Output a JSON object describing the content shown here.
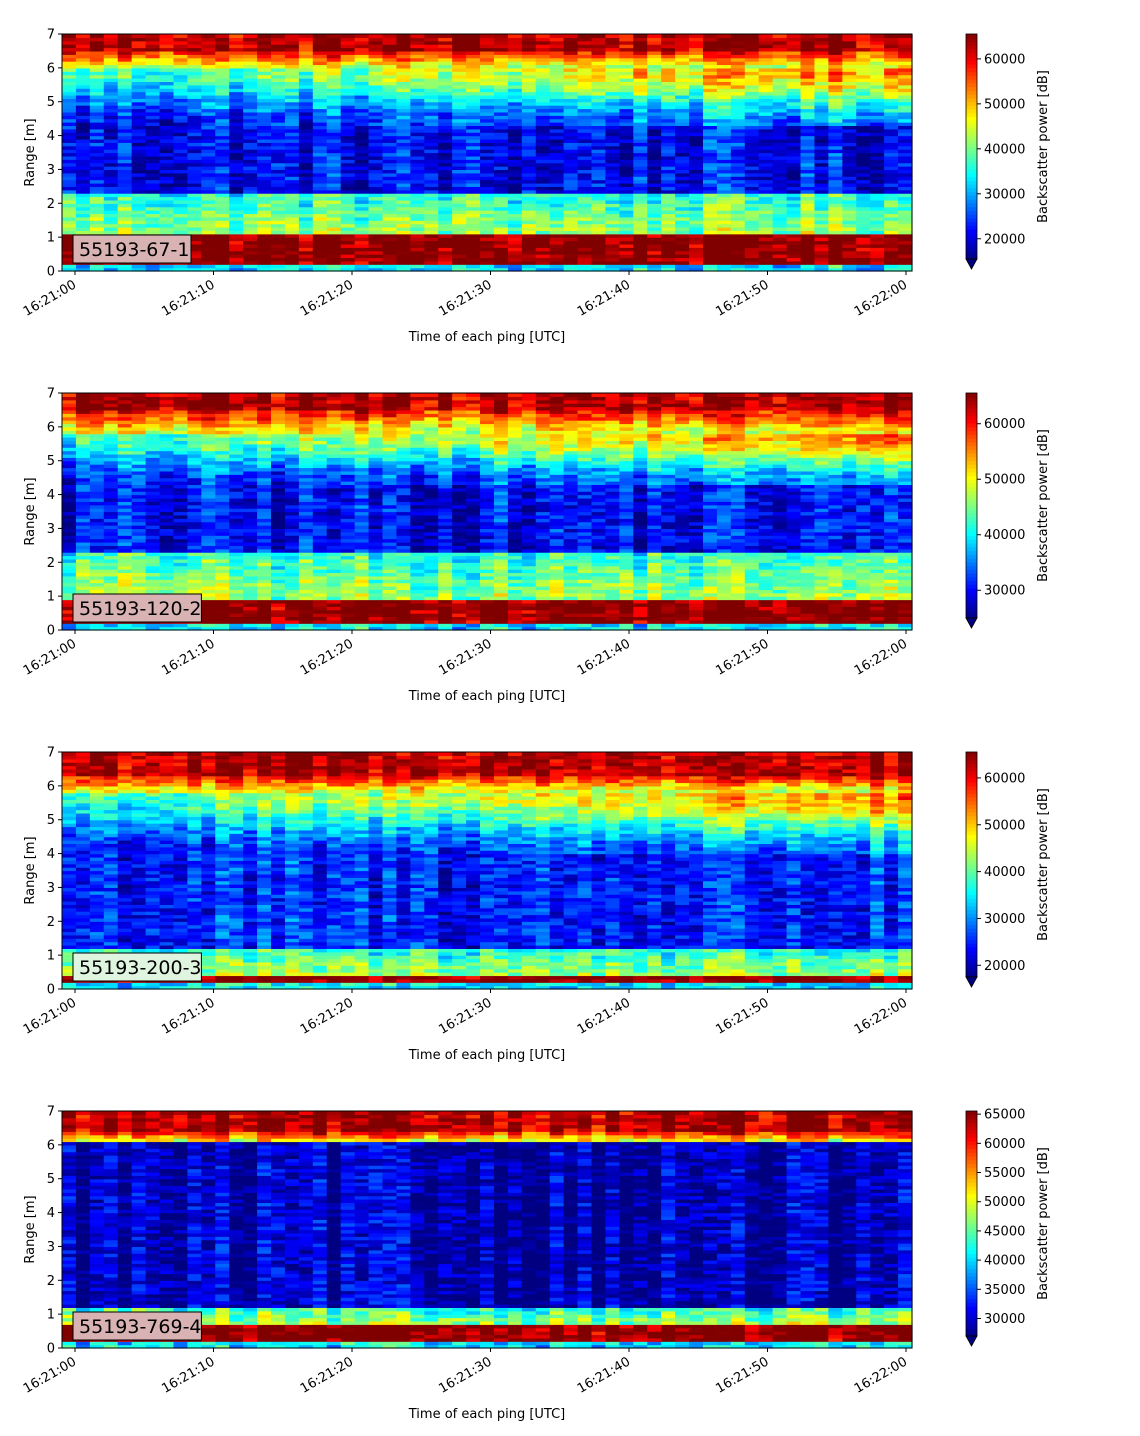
{
  "chart_data": [
    {
      "type": "heatmap",
      "label": "55193-67-1",
      "label_box_color": "#d9b3b3",
      "xlabel": "Time of each ping [UTC]",
      "ylabel": "Range [m]",
      "x_ticks": [
        "16:21:00",
        "16:21:10",
        "16:21:20",
        "16:21:30",
        "16:21:40",
        "16:21:50",
        "16:22:00"
      ],
      "y_ticks": [
        0,
        1,
        2,
        3,
        4,
        5,
        6,
        7
      ],
      "ylim": [
        0,
        7
      ],
      "colorbar": {
        "label": "Backscatter power [dB]",
        "min": 15500,
        "max": 65535,
        "ticks": [
          20000,
          30000,
          40000,
          50000,
          60000
        ],
        "tick_labels": [
          "20000",
          "30000",
          "40000",
          "50000",
          "60000"
        ],
        "extend": "min",
        "colormap": "jet"
      },
      "bands": {
        "top_red_start": 6.5,
        "top_yellow_start": 6.0,
        "upper_green_band": [
          4.3,
          6.0
        ],
        "dark_blue_band": [
          2.3,
          4.3
        ],
        "lower_cyan_band": [
          1.2,
          2.3
        ],
        "bottom_red_band": [
          0.25,
          1.15
        ]
      }
    },
    {
      "type": "heatmap",
      "label": "55193-120-2",
      "label_box_color": "#d9b3b3",
      "xlabel": "Time of each ping [UTC]",
      "ylabel": "Range [m]",
      "x_ticks": [
        "16:21:00",
        "16:21:10",
        "16:21:20",
        "16:21:30",
        "16:21:40",
        "16:21:50",
        "16:22:00"
      ],
      "y_ticks": [
        0,
        1,
        2,
        3,
        4,
        5,
        6,
        7
      ],
      "ylim": [
        0,
        7
      ],
      "colorbar": {
        "label": "Backscatter power [dB]",
        "min": 25000,
        "max": 65535,
        "ticks": [
          30000,
          40000,
          50000,
          60000
        ],
        "tick_labels": [
          "30000",
          "40000",
          "50000",
          "60000"
        ],
        "extend": "min",
        "colormap": "jet"
      },
      "bands": {
        "top_red_start": 6.5,
        "top_yellow_start": 5.8,
        "upper_green_band": [
          4.3,
          5.8
        ],
        "dark_blue_band": [
          2.3,
          4.3
        ],
        "lower_cyan_band": [
          1.0,
          2.3
        ],
        "bottom_red_band": [
          0.25,
          0.9
        ]
      }
    },
    {
      "type": "heatmap",
      "label": "55193-200-3",
      "label_box_color": "#dff5e0",
      "xlabel": "Time of each ping [UTC]",
      "ylabel": "Range [m]",
      "x_ticks": [
        "16:21:00",
        "16:21:10",
        "16:21:20",
        "16:21:30",
        "16:21:40",
        "16:21:50",
        "16:22:00"
      ],
      "y_ticks": [
        0,
        1,
        2,
        3,
        4,
        5,
        6,
        7
      ],
      "ylim": [
        0,
        7
      ],
      "colorbar": {
        "label": "Backscatter power [dB]",
        "min": 17500,
        "max": 65535,
        "ticks": [
          20000,
          30000,
          40000,
          50000,
          60000
        ],
        "tick_labels": [
          "20000",
          "30000",
          "40000",
          "50000",
          "60000"
        ],
        "extend": "min",
        "colormap": "jet"
      },
      "bands": {
        "top_red_start": 6.3,
        "top_yellow_start": 5.8,
        "upper_green_band": [
          4.0,
          5.8
        ],
        "dark_blue_band": [
          1.2,
          4.0
        ],
        "lower_cyan_band": [
          0.5,
          1.2
        ],
        "bottom_red_band": [
          0.2,
          0.4
        ]
      }
    },
    {
      "type": "heatmap",
      "label": "55193-769-4",
      "label_box_color": "#d9b3b3",
      "xlabel": "Time of each ping [UTC]",
      "ylabel": "Range [m]",
      "x_ticks": [
        "16:21:00",
        "16:21:10",
        "16:21:20",
        "16:21:30",
        "16:21:40",
        "16:21:50",
        "16:22:00"
      ],
      "y_ticks": [
        0,
        1,
        2,
        3,
        4,
        5,
        6,
        7
      ],
      "ylim": [
        0,
        7
      ],
      "colorbar": {
        "label": "Backscatter power [dB]",
        "min": 27000,
        "max": 65535,
        "ticks": [
          30000,
          35000,
          40000,
          45000,
          50000,
          55000,
          60000,
          65000
        ],
        "tick_labels": [
          "30000",
          "35000",
          "40000",
          "45000",
          "50000",
          "55000",
          "60000",
          "65000"
        ],
        "extend": "min",
        "colormap": "jet"
      },
      "bands": {
        "top_red_start": 6.4,
        "top_yellow_start": 6.1,
        "upper_green_band": [
          6.0,
          6.1
        ],
        "dark_blue_band": [
          1.2,
          6.0
        ],
        "lower_cyan_band": [
          0.75,
          1.2
        ],
        "bottom_red_band": [
          0.25,
          0.7
        ]
      }
    }
  ]
}
